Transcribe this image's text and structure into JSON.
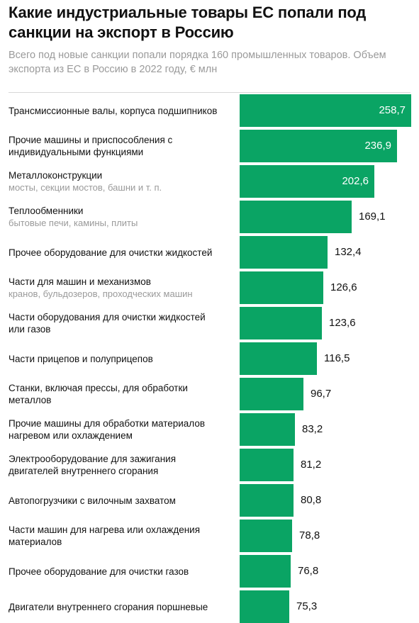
{
  "header": {
    "title": "Какие индустриальные товары ЕС попали под санкции на экспорт в Россию",
    "subtitle": "Всего под новые санкции попали порядка 160 промышленных товаров. Объем экспорта из ЕС в Россию в 2022 году, € млн"
  },
  "colors": {
    "bar": "#0aa464",
    "label_inside": "#ffffff",
    "note": "#9a9a9a"
  },
  "chart_data": {
    "type": "bar",
    "orientation": "horizontal",
    "title": "Какие индустриальные товары ЕС попали под санкции на экспорт в Россию",
    "subtitle": "Всего под новые санкции попали порядка 160 промышленных товаров. Объем экспорта из ЕС в Россию в 2022 году, € млн",
    "categories": [
      "Трансмиссионные валы, корпуса подшипников",
      "Прочие машины и приспособления с индивидуальными функциями",
      "Металлоконструкции",
      "Теплообменники",
      "Прочее оборудование для очистки жидкостей",
      "Части для машин и механизмов",
      "Части оборудования для очистки жидкостей или газов",
      "Части прицепов и полуприцепов",
      "Станки, включая прессы, для обработки металлов",
      "Прочие машины для обработки материалов нагревом или охлаждением",
      "Электрооборудование для зажигания двигателей внутреннего сгорания",
      "Автопогрузчики с вилочным захватом",
      "Части машин для нагрева или охлаждения материалов",
      "Прочее оборудование для очистки газов",
      "Двигатели внутреннего сгорания поршневые"
    ],
    "notes": [
      "",
      "",
      "мосты, секции мостов, башни и т. п.",
      "бытовые печи, камины, плиты",
      "",
      "кранов, бульдозеров, проходческих машин",
      "",
      "",
      "",
      "",
      "",
      "",
      "",
      "",
      ""
    ],
    "values": [
      258.7,
      236.9,
      202.6,
      169.1,
      132.4,
      126.6,
      123.6,
      116.5,
      96.7,
      83.2,
      81.2,
      80.8,
      78.8,
      76.8,
      75.3
    ],
    "value_labels": [
      "258,7",
      "236,9",
      "202,6",
      "169,1",
      "132,4",
      "126,6",
      "123,6",
      "116,5",
      "96,7",
      "83,2",
      "81,2",
      "80,8",
      "78,8",
      "76,8",
      "75,3"
    ],
    "labels_inside_bar": 3,
    "xlim": [
      0,
      258.7
    ],
    "grid": false,
    "legend": "none"
  }
}
